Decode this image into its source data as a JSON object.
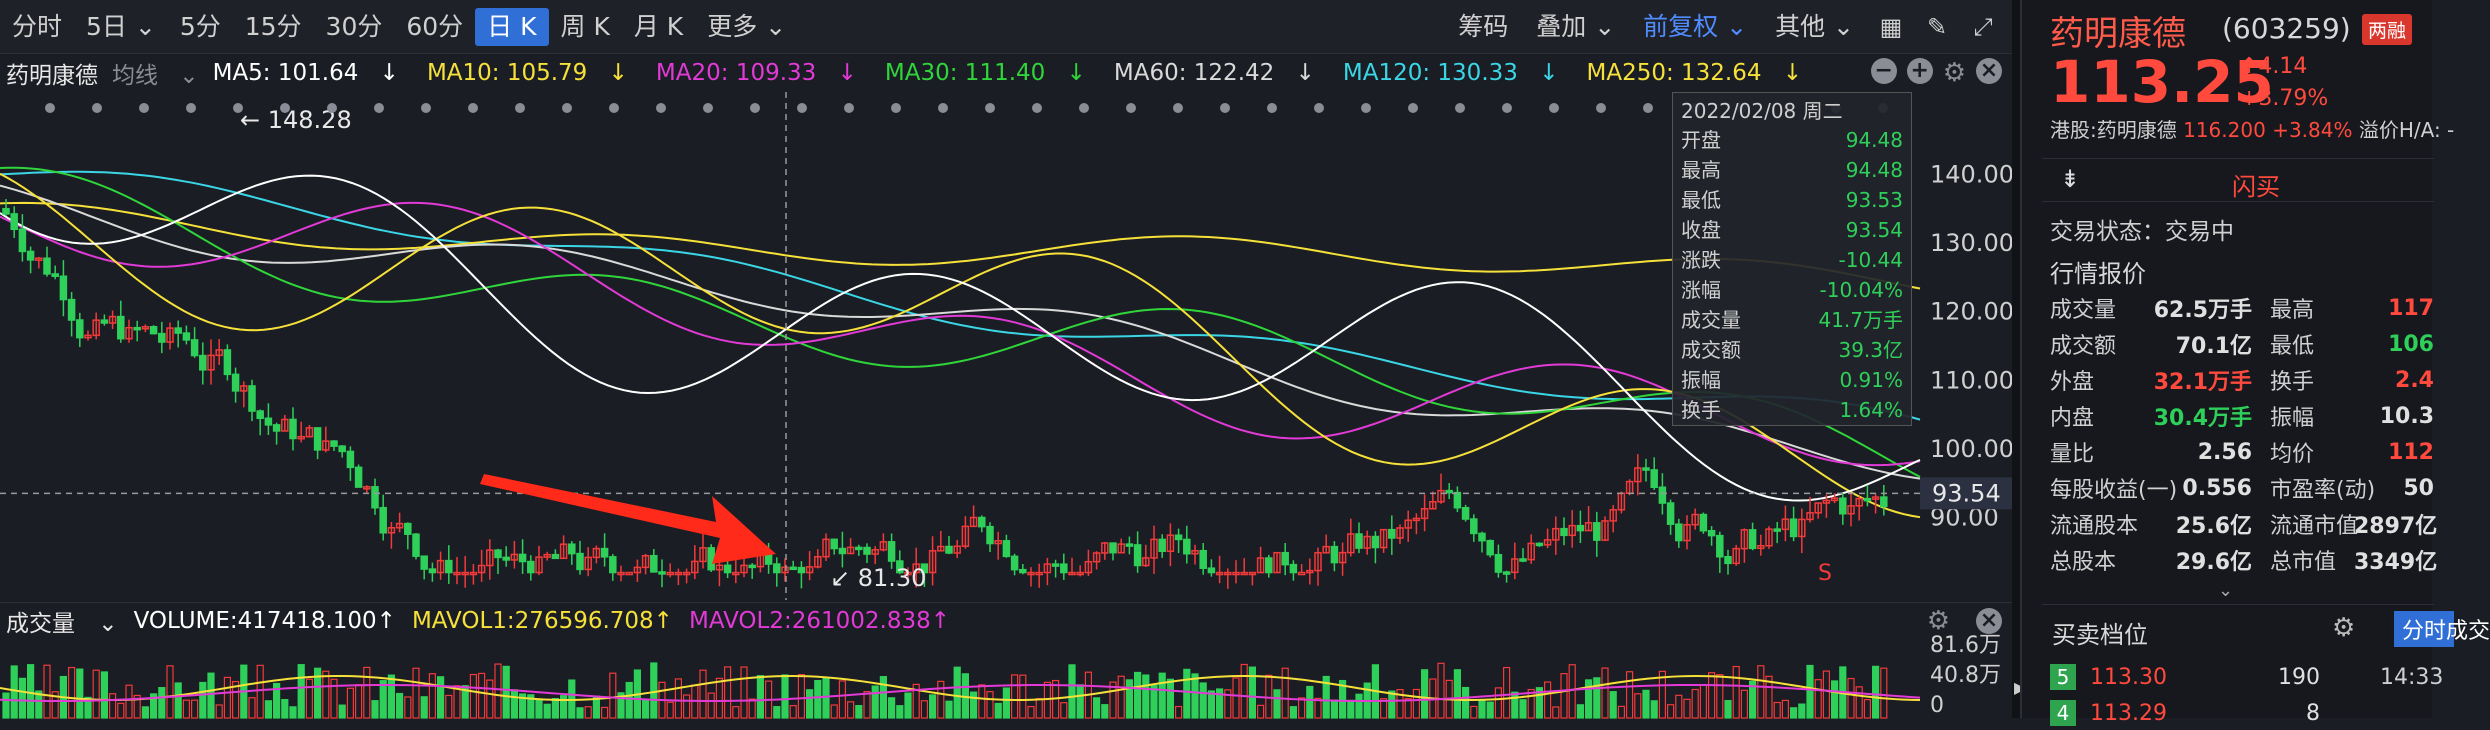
{
  "periods": [
    "分时",
    "5日",
    "5分",
    "15分",
    "30分",
    "60分",
    "日 K",
    "周 K",
    "月 K",
    "更多"
  ],
  "active_period": "日 K",
  "toolbar": {
    "chip": "筹码",
    "overlay": "叠加",
    "adjust": "前复权",
    "other": "其他"
  },
  "ma_bar": {
    "stock": "药明康德",
    "mode": "均线",
    "ma5": "MA5: 101.64",
    "ma10": "MA10: 105.79",
    "ma20": "MA20: 109.33",
    "ma30": "MA30: 111.40",
    "ma60": "MA60: 122.42",
    "ma120": "MA120: 130.33",
    "ma250": "MA250: 132.64",
    "arrow": "↓",
    "colors": {
      "ma5": "#ffffff",
      "ma10": "#f6e13a",
      "ma20": "#e23ad6",
      "ma30": "#2fd53a",
      "ma60": "#d9d9d9",
      "ma120": "#3ad6e6",
      "ma250": "#f6e13a"
    }
  },
  "chart": {
    "high_label": "148.28",
    "low_label": "81.30",
    "cross_price": "93.54",
    "s_marker": "S",
    "y_ticks": [
      "140.00",
      "130.00",
      "120.00",
      "110.00",
      "100.00",
      "90.00"
    ],
    "y_values": [
      140,
      130,
      120,
      110,
      100,
      90
    ],
    "ylim": [
      78,
      152
    ],
    "cross_value": 93.54,
    "up_color": "#f23a3a",
    "down_color": "#2ed05a"
  },
  "tooltip": {
    "date": "2022/02/08 周二",
    "rows": [
      [
        "开盘",
        "94.48"
      ],
      [
        "最高",
        "94.48"
      ],
      [
        "最低",
        "93.53"
      ],
      [
        "收盘",
        "93.54"
      ],
      [
        "涨跌",
        "-10.44"
      ],
      [
        "涨幅",
        "-10.04%"
      ],
      [
        "成交量",
        "41.7万手"
      ],
      [
        "成交额",
        "39.3亿"
      ],
      [
        "振幅",
        "0.91%"
      ],
      [
        "换手",
        "1.64%"
      ]
    ]
  },
  "volume": {
    "title": "成交量",
    "volume": "VOLUME:417418.100↑",
    "mavol1": "MAVOL1:276596.708↑",
    "mavol2": "MAVOL2:261002.838↑",
    "ticks": [
      "81.6万",
      "40.8万",
      "0"
    ],
    "max": 816000
  },
  "quote": {
    "name": "药明康德",
    "code": "(603259)",
    "badge": "两融",
    "price": "113.25",
    "change": "↑4.14",
    "pct": "+3.79%",
    "hk_label": "港股:药明康德",
    "hk_price": "116.200",
    "hk_pct": "+3.84%",
    "premium": "溢价H/A: -",
    "flash": "闪买",
    "status": "交易状态：交易中",
    "section": "行情报价",
    "rows": [
      [
        "成交量",
        "62.5万手",
        "最高",
        "117",
        ""
      ],
      [
        "成交额",
        "70.1亿",
        "最低",
        "106",
        ""
      ],
      [
        "外盘",
        "32.1万手",
        "换手",
        "2.4",
        ""
      ],
      [
        "内盘",
        "30.4万手",
        "振幅",
        "10.3",
        ""
      ],
      [
        "量比",
        "2.56",
        "均价",
        "112",
        ""
      ],
      [
        "每股收益(一)",
        "0.556",
        "市盈率(动)",
        "50",
        ""
      ],
      [
        "流通股本",
        "25.6亿",
        "流通市值",
        "2897亿",
        ""
      ],
      [
        "总股本",
        "29.6亿",
        "总市值",
        "3349亿",
        ""
      ]
    ],
    "orderbook_title": "买卖档位",
    "tab": "分时成交",
    "orders": [
      [
        "5",
        "113.30",
        "190",
        "14:33"
      ],
      [
        "4",
        "113.29",
        "8",
        ""
      ]
    ]
  }
}
